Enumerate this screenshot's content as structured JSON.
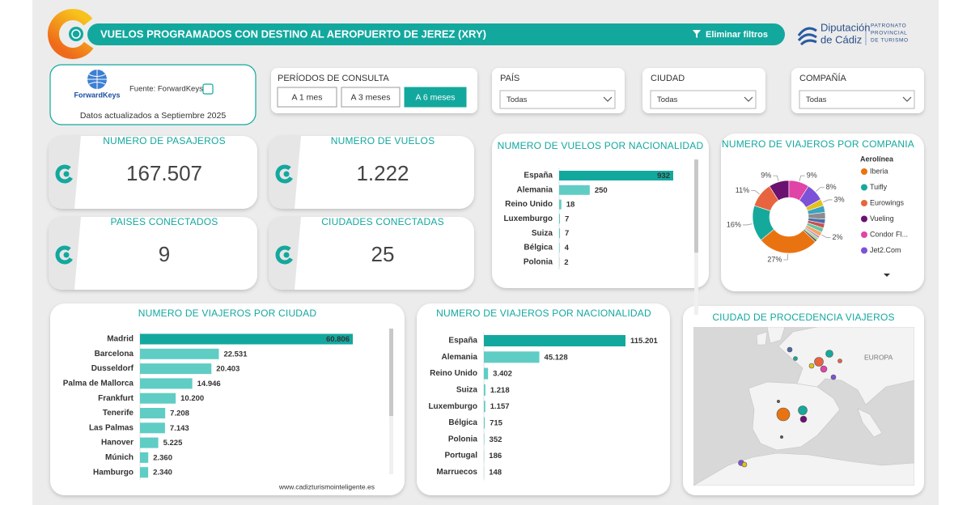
{
  "header": {
    "title": "VUELOS PROGRAMADOS CON DESTINO AL AEROPUERTO DE JEREZ (XRY)",
    "clear_filters": "Eliminar filtros",
    "org_name": [
      "Diputación",
      "de Cádiz"
    ],
    "org_unit": [
      "PATRONATO",
      "PROVINCIAL",
      "DE TURISMO"
    ]
  },
  "source": {
    "logo": "ForwardKeys",
    "label": "Fuente: ForwardKeys",
    "updated": "Datos actualizados a Septiembre 2025"
  },
  "periods": {
    "title": "PERÍODOS DE CONSULTA",
    "options": [
      "A 1 mes",
      "A 3 meses",
      "A 6 meses"
    ],
    "selected": 2
  },
  "filters": [
    {
      "label": "PAÍS",
      "value": "Todas"
    },
    {
      "label": "CIUDAD",
      "value": "Todas"
    },
    {
      "label": "COMPAÑÍA",
      "value": "Todas"
    }
  ],
  "kpis": [
    {
      "title": "NUMERO DE PASAJEROS",
      "value": "167.507"
    },
    {
      "title": "NUMERO DE VUELOS",
      "value": "1.222"
    },
    {
      "title": "PAISES CONECTADOS",
      "value": "9"
    },
    {
      "title": "CIUDADES CONECTADAS",
      "value": "25"
    }
  ],
  "chart_data": [
    {
      "type": "bar",
      "orientation": "horizontal",
      "title": "NUMERO DE VUELOS POR NACIONALIDAD",
      "categories": [
        "España",
        "Alemania",
        "Reino Unido",
        "Luxemburgo",
        "Suiza",
        "Bélgica",
        "Polonia"
      ],
      "values": [
        932,
        250,
        18,
        7,
        7,
        4,
        2
      ],
      "colors": [
        "#13a89e",
        "#5fcdc4",
        "#5fcdc4",
        "#5fcdc4",
        "#5fcdc4",
        "#5fcdc4",
        "#5fcdc4"
      ]
    },
    {
      "type": "pie",
      "donut": true,
      "title": "NUMERO DE VIAJEROS POR COMPANIA",
      "legend_title": "Aerolínea",
      "legend": "right",
      "categories": [
        "Iberia",
        "Tuifly",
        "Eurowings",
        "Vueling",
        "Condor Fl...",
        "Jet2.Com",
        null,
        null,
        null,
        null,
        null,
        null,
        null,
        null,
        null,
        null
      ],
      "values": [
        27,
        16,
        11,
        9,
        9,
        8,
        3,
        3,
        3,
        2,
        2,
        2,
        2,
        1,
        1,
        1
      ],
      "value_labels": [
        "27%",
        "16%",
        "11%",
        "9%",
        "9%",
        "8%",
        "3%",
        null,
        null,
        null,
        null,
        null,
        "2%",
        null,
        null,
        null
      ],
      "colors": [
        "#ea7311",
        "#15a99b",
        "#e8643e",
        "#6b1170",
        "#e044a6",
        "#7c52d8",
        "#e3c21a",
        "#3aa3c4",
        "#8c8c8c",
        "#4b6caa",
        "#c65252",
        "#63c4a3",
        "#f2a766",
        "#b58ad8",
        "#9fd66b",
        "#5c5c5c"
      ]
    },
    {
      "type": "bar",
      "orientation": "horizontal",
      "title": "NUMERO DE VIAJEROS POR CIUDAD",
      "source": "www.cadizturismointeligente.es",
      "categories": [
        "Madrid",
        "Barcelona",
        "Dusseldorf",
        "Palma de Mallorca",
        "Frankfurt",
        "Tenerife",
        "Las Palmas",
        "Hanover",
        "Múnich",
        "Hamburgo"
      ],
      "values": [
        60806,
        22531,
        20403,
        14946,
        10200,
        7208,
        7143,
        5225,
        2360,
        2340
      ],
      "value_labels": [
        "60.806",
        "22.531",
        "20.403",
        "14.946",
        "10.200",
        "7.208",
        "7.143",
        "5.225",
        "2.360",
        "2.340"
      ],
      "colors": [
        "#13a89e",
        "#5fcdc4",
        "#5fcdc4",
        "#5fcdc4",
        "#5fcdc4",
        "#5fcdc4",
        "#5fcdc4",
        "#5fcdc4",
        "#5fcdc4",
        "#5fcdc4"
      ]
    },
    {
      "type": "bar",
      "orientation": "horizontal",
      "title": "NUMERO DE VIAJEROS POR NACIONALIDAD",
      "categories": [
        "España",
        "Alemania",
        "Reino Unido",
        "Suiza",
        "Luxemburgo",
        "Bélgica",
        "Polonia",
        "Portugal",
        "Marruecos"
      ],
      "values": [
        115201,
        45128,
        3402,
        1218,
        1157,
        715,
        352,
        186,
        148
      ],
      "value_labels": [
        "115.201",
        "45.128",
        "3.402",
        "1.218",
        "1.157",
        "715",
        "352",
        "186",
        "148"
      ],
      "colors": [
        "#13a89e",
        "#5fcdc4",
        "#5fcdc4",
        "#5fcdc4",
        "#5fcdc4",
        "#5fcdc4",
        "#5fcdc4",
        "#5fcdc4",
        "#5fcdc4"
      ]
    }
  ],
  "map": {
    "title": "CIUDAD DE PROCEDENCIA VIAJEROS",
    "region_label": "EUROPA"
  }
}
